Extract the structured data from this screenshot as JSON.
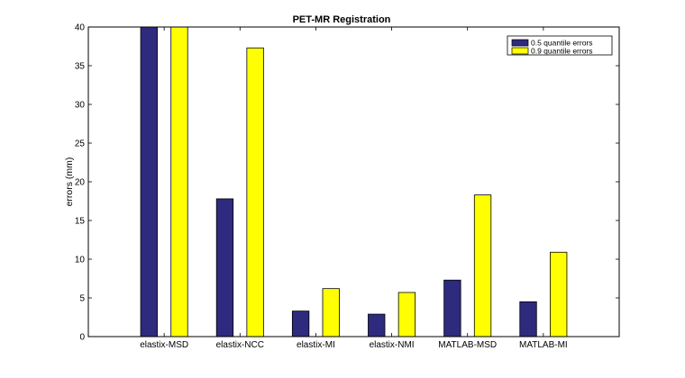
{
  "chart_data": {
    "type": "bar",
    "title": "PET-MR Registration",
    "xlabel": "",
    "ylabel": "errors (mm)",
    "ylim": [
      0,
      40
    ],
    "yticks": [
      0,
      5,
      10,
      15,
      20,
      25,
      30,
      35,
      40
    ],
    "categories": [
      "elastix-MSD",
      "elastix-NCC",
      "elastix-MI",
      "elastix-NMI",
      "MATLAB-MSD",
      "MATLAB-MI"
    ],
    "series": [
      {
        "name": "0.5 quantile errors",
        "color": "#2e2a7e",
        "values": [
          40,
          17.8,
          3.3,
          2.9,
          7.3,
          4.5
        ]
      },
      {
        "name": "0.9 quantile errors",
        "color": "#ffff00",
        "values": [
          40,
          37.3,
          6.2,
          5.7,
          18.3,
          10.9
        ]
      }
    ],
    "grid": false,
    "legend_position": "top-right"
  }
}
